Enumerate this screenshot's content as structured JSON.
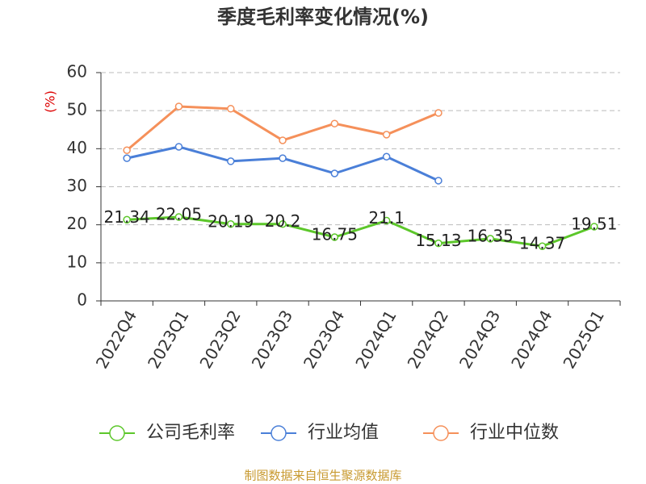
{
  "chart_data": {
    "type": "line",
    "title": "季度毛利率变化情况(%)",
    "ylabel": "(%)",
    "source": "制图数据来自恒生聚源数据库",
    "categories": [
      "2022Q4",
      "2023Q1",
      "2023Q2",
      "2023Q3",
      "2023Q4",
      "2024Q1",
      "2024Q2",
      "2024Q3",
      "2024Q4",
      "2025Q1"
    ],
    "series": [
      {
        "name": "公司毛利率",
        "color": "#5cc72a",
        "values": [
          21.34,
          22.05,
          20.19,
          20.2,
          16.75,
          21.1,
          15.13,
          16.35,
          14.37,
          19.51
        ],
        "labels": true
      },
      {
        "name": "行业均值",
        "color": "#4a7fd8",
        "values": [
          37.5,
          40.5,
          36.7,
          37.5,
          33.5,
          37.9,
          31.6,
          null,
          null,
          null
        ]
      },
      {
        "name": "行业中位数",
        "color": "#f5905a",
        "values": [
          39.6,
          51.1,
          50.5,
          42.2,
          46.6,
          43.7,
          49.4,
          null,
          null,
          null
        ]
      }
    ],
    "ylim": [
      0,
      60
    ],
    "yticks": [
      0,
      10,
      20,
      30,
      40,
      50,
      60
    ],
    "grid": true,
    "legend": "bottom"
  }
}
